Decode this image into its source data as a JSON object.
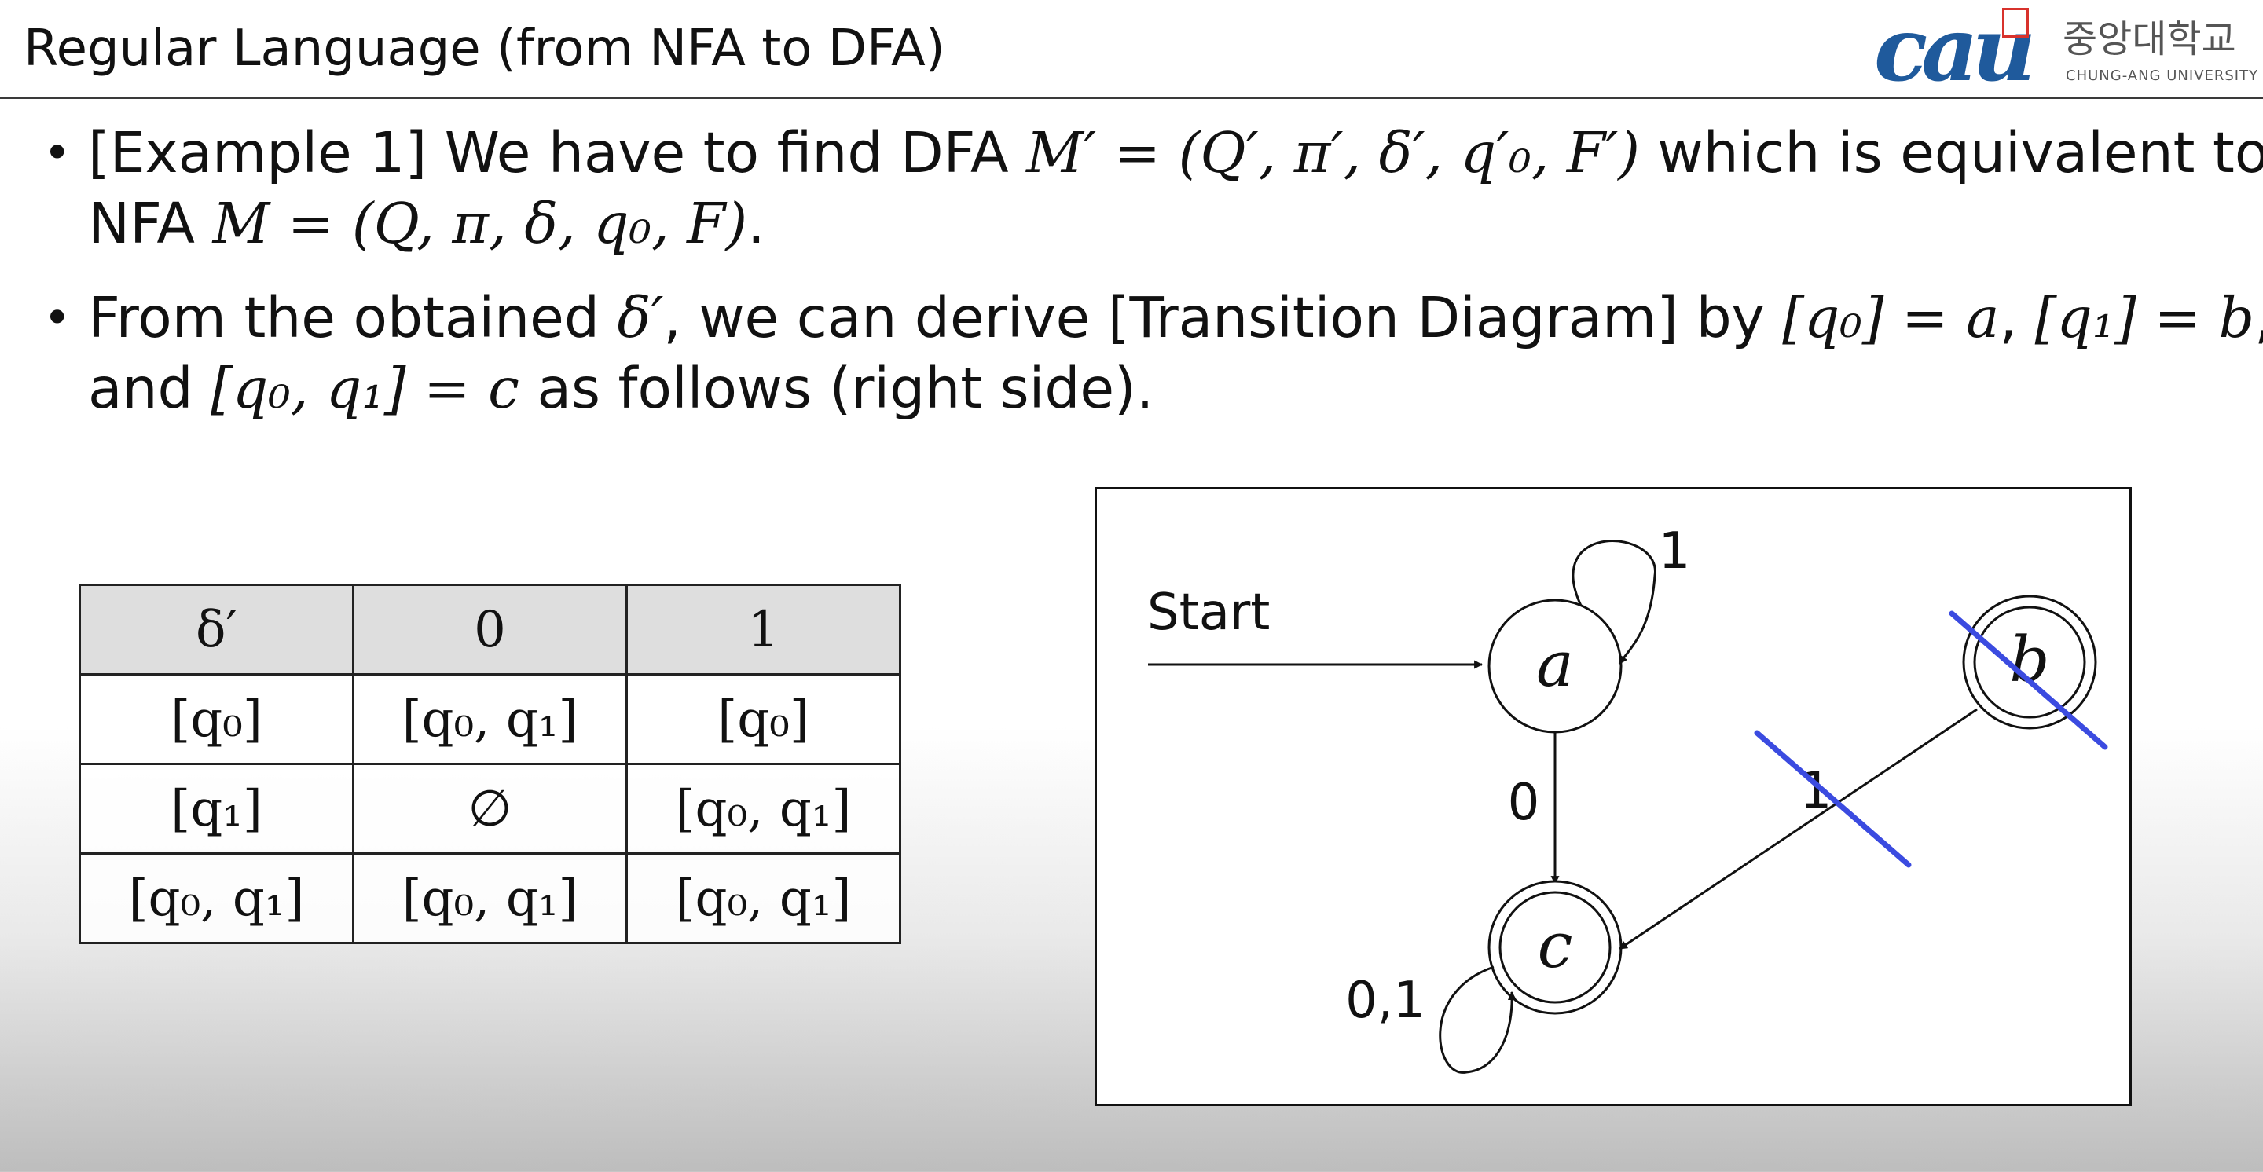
{
  "header": {
    "title": "Regular Language (from NFA to DFA)",
    "logo_mark": "cau",
    "logo_korean": "중앙대학교",
    "logo_english": "CHUNG-ANG UNIVERSITY"
  },
  "bullets": [
    {
      "lead": "[Example 1] We have to find DFA ",
      "dfa_tuple": "M′ = (Q′, π′, δ′, q′₀, F′)",
      "mid": " which is equivalent to NFA ",
      "nfa_tuple": "M = (Q, π, δ, q₀, F)",
      "tail": "."
    },
    {
      "lead": "From the obtained ",
      "delta": "δ′",
      "mid1": ", we can derive [Transition Diagram] by ",
      "eq_a": "[q₀] = a",
      "sep1": ", ",
      "eq_b": "[q₁] = b",
      "mid2": ", and ",
      "eq_c": "[q₀, q₁] = c",
      "tail": " as follows (right side)."
    }
  ],
  "table": {
    "headers": [
      "δ′",
      "0",
      "1"
    ],
    "rows": [
      [
        "[q₀]",
        "[q₀, q₁]",
        "[q₀]"
      ],
      [
        "[q₁]",
        "∅",
        "[q₀, q₁]"
      ],
      [
        "[q₀, q₁]",
        "[q₀, q₁]",
        "[q₀, q₁]"
      ]
    ]
  },
  "diagram": {
    "start_label": "Start",
    "states": [
      {
        "id": "a",
        "label": "a",
        "accepting": false,
        "start": true,
        "crossed_out": false
      },
      {
        "id": "b",
        "label": "b",
        "accepting": true,
        "start": false,
        "crossed_out": true
      },
      {
        "id": "c",
        "label": "c",
        "accepting": true,
        "start": false,
        "crossed_out": false
      }
    ],
    "transitions": [
      {
        "from": "a",
        "to": "a",
        "label": "1",
        "crossed_out": false
      },
      {
        "from": "a",
        "to": "c",
        "label": "0",
        "crossed_out": false
      },
      {
        "from": "b",
        "to": "c",
        "label": "1",
        "crossed_out": true
      },
      {
        "from": "c",
        "to": "c",
        "label": "0,1",
        "crossed_out": false
      }
    ],
    "strike_color": "#3b4be0"
  }
}
